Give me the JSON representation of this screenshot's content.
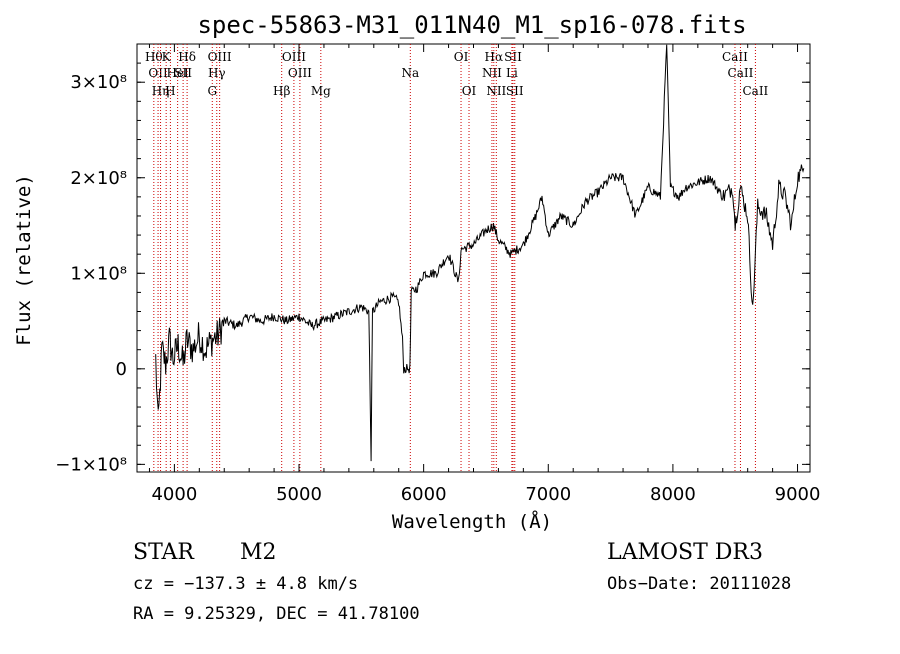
{
  "chart_data": {
    "type": "line",
    "title": "spec-55863-M31_011N40_M1_sp16-078.fits",
    "xlabel": "Wavelength (Å)",
    "ylabel": "Flux (relative)",
    "xlim": [
      3700,
      9100
    ],
    "ylim": [
      -108000000.0,
      340000000.0
    ],
    "xticks": [
      4000,
      5000,
      6000,
      7000,
      8000,
      9000
    ],
    "xtick_labels": [
      "4000",
      "5000",
      "6000",
      "7000",
      "8000",
      "9000"
    ],
    "yticks": [
      {
        "value": -100000000.0,
        "label": "−1×10⁸"
      },
      {
        "value": 0,
        "label": "0"
      },
      {
        "value": 100000000.0,
        "label": "1×10⁸"
      },
      {
        "value": 200000000.0,
        "label": "2×10⁸"
      },
      {
        "value": 300000000.0,
        "label": "3×10⁸"
      }
    ],
    "line_color": "#000000",
    "marker_color": "#cc0000",
    "spectrum_anchor_points": [
      [
        3850,
        10000000.0
      ],
      [
        3870,
        -60000000.0
      ],
      [
        3900,
        20000000.0
      ],
      [
        3930,
        5000000.0
      ],
      [
        3960,
        30000000.0
      ],
      [
        3990,
        10000000.0
      ],
      [
        4030,
        25000000.0
      ],
      [
        4070,
        5000000.0
      ],
      [
        4100,
        30000000.0
      ],
      [
        4150,
        20000000.0
      ],
      [
        4200,
        35000000.0
      ],
      [
        4250,
        20000000.0
      ],
      [
        4300,
        30000000.0
      ],
      [
        4350,
        35000000.0
      ],
      [
        4400,
        50000000.0
      ],
      [
        4500,
        45000000.0
      ],
      [
        4600,
        55000000.0
      ],
      [
        4700,
        50000000.0
      ],
      [
        4800,
        55000000.0
      ],
      [
        4900,
        50000000.0
      ],
      [
        5000,
        55000000.0
      ],
      [
        5100,
        45000000.0
      ],
      [
        5200,
        50000000.0
      ],
      [
        5300,
        55000000.0
      ],
      [
        5400,
        60000000.0
      ],
      [
        5500,
        65000000.0
      ],
      [
        5560,
        60000000.0
      ],
      [
        5578,
        -92000000.0
      ],
      [
        5590,
        60000000.0
      ],
      [
        5650,
        70000000.0
      ],
      [
        5750,
        75000000.0
      ],
      [
        5800,
        70000000.0
      ],
      [
        5830,
        30000000.0
      ],
      [
        5840,
        0.0
      ],
      [
        5890,
        0.0
      ],
      [
        5900,
        80000000.0
      ],
      [
        5950,
        85000000.0
      ],
      [
        6000,
        100000000.0
      ],
      [
        6100,
        100000000.0
      ],
      [
        6200,
        120000000.0
      ],
      [
        6280,
        90000000.0
      ],
      [
        6300,
        125000000.0
      ],
      [
        6400,
        130000000.0
      ],
      [
        6500,
        145000000.0
      ],
      [
        6560,
        150000000.0
      ],
      [
        6600,
        135000000.0
      ],
      [
        6700,
        120000000.0
      ],
      [
        6800,
        130000000.0
      ],
      [
        6900,
        160000000.0
      ],
      [
        6950,
        180000000.0
      ],
      [
        7000,
        140000000.0
      ],
      [
        7100,
        160000000.0
      ],
      [
        7200,
        150000000.0
      ],
      [
        7300,
        175000000.0
      ],
      [
        7400,
        185000000.0
      ],
      [
        7500,
        200000000.0
      ],
      [
        7600,
        200000000.0
      ],
      [
        7700,
        160000000.0
      ],
      [
        7800,
        190000000.0
      ],
      [
        7900,
        180000000.0
      ],
      [
        7950,
        340000000.0
      ],
      [
        7980,
        190000000.0
      ],
      [
        8050,
        180000000.0
      ],
      [
        8100,
        190000000.0
      ],
      [
        8200,
        195000000.0
      ],
      [
        8300,
        200000000.0
      ],
      [
        8400,
        180000000.0
      ],
      [
        8480,
        190000000.0
      ],
      [
        8500,
        150000000.0
      ],
      [
        8540,
        190000000.0
      ],
      [
        8600,
        160000000.0
      ],
      [
        8640,
        60000000.0
      ],
      [
        8680,
        170000000.0
      ],
      [
        8750,
        160000000.0
      ],
      [
        8800,
        130000000.0
      ],
      [
        8850,
        190000000.0
      ],
      [
        8900,
        180000000.0
      ],
      [
        8950,
        150000000.0
      ],
      [
        9000,
        200000000.0
      ],
      [
        9050,
        210000000.0
      ]
    ],
    "emission_markers": [
      {
        "wl": 3835,
        "label": "Hθ",
        "row": 1
      },
      {
        "wl": 3869,
        "label": "OII",
        "row": 2
      },
      {
        "wl": 3889,
        "label": "Hη",
        "row": 3
      },
      {
        "wl": 3934,
        "label": "K",
        "row": 1
      },
      {
        "wl": 3968,
        "label": "H",
        "row": 3
      },
      {
        "wl": 4026,
        "label": "HeI",
        "row": 2
      },
      {
        "wl": 4070,
        "label": "SII",
        "row": 2
      },
      {
        "wl": 4102,
        "label": "Hδ",
        "row": 1
      },
      {
        "wl": 4304,
        "label": "G",
        "row": 3
      },
      {
        "wl": 4340,
        "label": "Hγ",
        "row": 2
      },
      {
        "wl": 4363,
        "label": "OIII",
        "row": 1
      },
      {
        "wl": 4861,
        "label": "Hβ",
        "row": 3
      },
      {
        "wl": 4959,
        "label": "OIII",
        "row": 1
      },
      {
        "wl": 5007,
        "label": "OIII",
        "row": 2
      },
      {
        "wl": 5175,
        "label": "Mg",
        "row": 3
      },
      {
        "wl": 5893,
        "label": "Na",
        "row": 2
      },
      {
        "wl": 6300,
        "label": "OI",
        "row": 1
      },
      {
        "wl": 6364,
        "label": "OI",
        "row": 3
      },
      {
        "wl": 6548,
        "label": "NII",
        "row": 2
      },
      {
        "wl": 6563,
        "label": "Hα",
        "row": 1
      },
      {
        "wl": 6583,
        "label": "NII",
        "row": 3
      },
      {
        "wl": 6708,
        "label": "Li",
        "row": 2
      },
      {
        "wl": 6717,
        "label": "SII",
        "row": 1
      },
      {
        "wl": 6731,
        "label": "SII",
        "row": 3
      },
      {
        "wl": 8498,
        "label": "CaII",
        "row": 1
      },
      {
        "wl": 8542,
        "label": "CaII",
        "row": 2
      },
      {
        "wl": 8662,
        "label": "CaII",
        "row": 3
      }
    ]
  },
  "info": {
    "class_label": "STAR",
    "subclass": "M2",
    "survey": "LAMOST DR3",
    "cz_text": "cz = −137.3 ± 4.8 km/s",
    "obs_date_text": "Obs−Date: 20111028",
    "radec_text": "RA =   9.25329, DEC =  41.78100"
  }
}
